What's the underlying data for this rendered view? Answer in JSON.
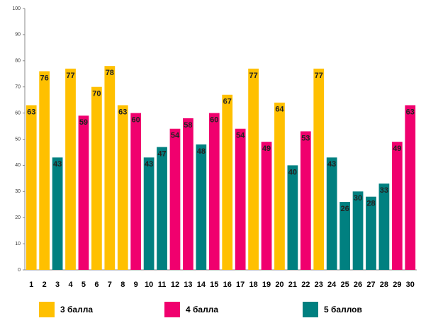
{
  "chart_data": {
    "type": "bar",
    "categories": [
      "1",
      "2",
      "3",
      "4",
      "5",
      "6",
      "7",
      "8",
      "9",
      "10",
      "11",
      "12",
      "13",
      "14",
      "15",
      "16",
      "17",
      "18",
      "19",
      "20",
      "21",
      "22",
      "23",
      "24",
      "25",
      "26",
      "27",
      "28",
      "29",
      "30"
    ],
    "series": [
      {
        "name": "3 балла",
        "color": "#ffc000",
        "values": [
          63,
          76,
          null,
          77,
          null,
          70,
          78,
          63,
          null,
          null,
          null,
          null,
          null,
          null,
          null,
          67,
          null,
          77,
          null,
          64,
          null,
          null,
          77,
          null,
          null,
          null,
          null,
          null,
          null,
          null
        ]
      },
      {
        "name": "4 балла",
        "color": "#f0006e",
        "values": [
          null,
          null,
          null,
          null,
          59,
          null,
          null,
          null,
          60,
          null,
          null,
          54,
          58,
          null,
          60,
          null,
          54,
          null,
          49,
          null,
          null,
          53,
          null,
          null,
          null,
          null,
          null,
          null,
          49,
          63
        ]
      },
      {
        "name": "5 баллов",
        "color": "#008080",
        "values": [
          null,
          null,
          43,
          null,
          null,
          null,
          null,
          null,
          null,
          43,
          47,
          null,
          null,
          48,
          null,
          null,
          null,
          null,
          null,
          null,
          40,
          null,
          null,
          43,
          26,
          30,
          28,
          33,
          null,
          null
        ]
      }
    ],
    "ylim": [
      0,
      100
    ],
    "yticks": [
      0,
      10,
      20,
      30,
      40,
      50,
      60,
      70,
      80,
      90,
      100
    ],
    "grid": false
  }
}
